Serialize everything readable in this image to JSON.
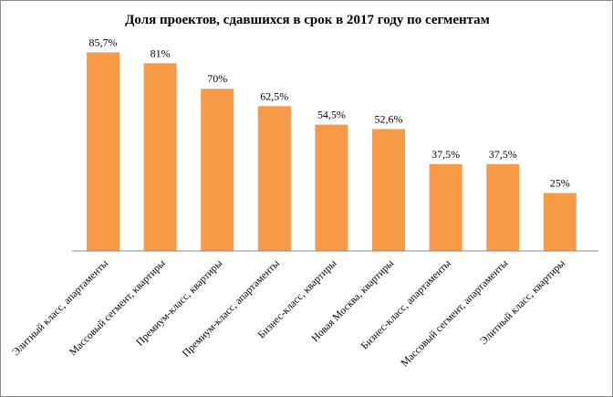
{
  "chart_data": {
    "type": "bar",
    "title": "Доля проектов, сдавшихся в срок в 2017 году по сегментам",
    "categories": [
      "Элитный класс, апартаменты",
      "Массовый сегмент, квартиры",
      "Премиум-класс, квартиры",
      "Премиум-класс, апартаменты",
      "Бизнес-класс, квартиры",
      "Новая Москва, квартиры",
      "Бизнес-класс, апартаменты",
      "Массовый сегмент, апартаменты",
      "Элитный класс, квартиры"
    ],
    "values": [
      85.7,
      81,
      70,
      62.5,
      54.5,
      52.6,
      37.5,
      37.5,
      25
    ],
    "data_labels": [
      "85,7%",
      "81%",
      "70%",
      "62,5%",
      "54,5%",
      "52,6%",
      "37,5%",
      "37,5%",
      "25%"
    ],
    "ylim": [
      0,
      100
    ],
    "grid": false,
    "legend": "none",
    "colors": {
      "bar": "#F79A48",
      "axis": "#888888"
    }
  }
}
